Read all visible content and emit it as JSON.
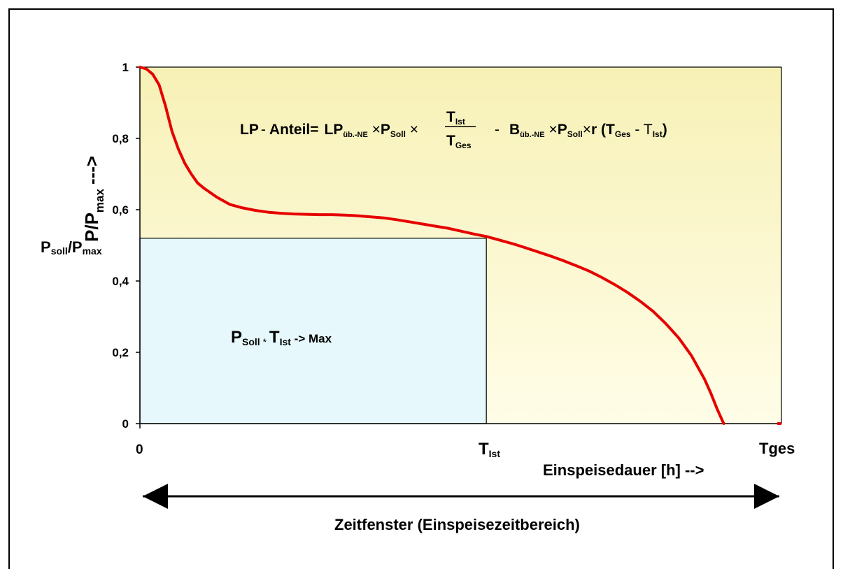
{
  "chart_data": {
    "type": "line",
    "title": "",
    "xlabel": "Einspeisedauer [h] -->",
    "ylabel": {
      "base": "P/P",
      "sub": "max",
      "arrow": "--->"
    },
    "ylim": [
      0,
      1
    ],
    "yticks": [
      "0",
      "0,2",
      "0,4",
      "0,6",
      "0,8",
      "1"
    ],
    "ytick_values": [
      0,
      0.2,
      0.4,
      0.6,
      0.8,
      1
    ],
    "xlim": [
      0,
      1
    ],
    "x_markers": [
      {
        "value": 0,
        "label": "0",
        "sub": ""
      },
      {
        "value": 0.54,
        "label": "T",
        "sub": "Ist"
      },
      {
        "value": 1,
        "label": "Tges",
        "sub": ""
      }
    ],
    "series": [
      {
        "color": "#e60000",
        "x": [
          0,
          0.01,
          0.02,
          0.03,
          0.04,
          0.05,
          0.06,
          0.07,
          0.08,
          0.09,
          0.1,
          0.12,
          0.14,
          0.16,
          0.18,
          0.2,
          0.22,
          0.24,
          0.26,
          0.28,
          0.3,
          0.32,
          0.34,
          0.36,
          0.38,
          0.4,
          0.42,
          0.44,
          0.46,
          0.48,
          0.5,
          0.52,
          0.54,
          0.56,
          0.58,
          0.6,
          0.62,
          0.64,
          0.66,
          0.68,
          0.7,
          0.72,
          0.74,
          0.76,
          0.78,
          0.8,
          0.82,
          0.84,
          0.86,
          0.88,
          0.89,
          0.9,
          0.91
        ],
        "y": [
          1.0,
          0.995,
          0.98,
          0.95,
          0.89,
          0.82,
          0.77,
          0.73,
          0.7,
          0.675,
          0.66,
          0.635,
          0.615,
          0.605,
          0.598,
          0.593,
          0.59,
          0.588,
          0.587,
          0.586,
          0.586,
          0.585,
          0.583,
          0.58,
          0.577,
          0.572,
          0.566,
          0.56,
          0.554,
          0.548,
          0.54,
          0.532,
          0.525,
          0.515,
          0.505,
          0.494,
          0.482,
          0.47,
          0.457,
          0.443,
          0.428,
          0.41,
          0.39,
          0.368,
          0.343,
          0.315,
          0.28,
          0.24,
          0.19,
          0.125,
          0.085,
          0.04,
          0.0
        ]
      }
    ],
    "rect": {
      "x0": 0,
      "x1": 0.54,
      "y0": 0,
      "y1": 0.52
    },
    "psoll_label": {
      "base": "P",
      "sub1": "soll",
      "mid": "/P",
      "sub2": "max"
    },
    "rect_label": {
      "p": "P",
      "p_sub": "Soll",
      "star": " * ",
      "t": "T",
      "t_sub": "Ist",
      "tail": " -> Max"
    },
    "formula": {
      "lp": "LP",
      "minus1": "-",
      "anteil": " Anteil=",
      "lp2": "LP",
      "lp2_sub": "üb.-NE",
      "times1": " ×",
      "p1": "P",
      "p1_sub": "Soll",
      "times2": " ×",
      "frac_num": "T",
      "frac_num_sub": "Ist",
      "frac_den": "T",
      "frac_den_sub": "Ges",
      "minus2": "-",
      "b": "B",
      "b_sub": "üb.-NE",
      "times3": " ×",
      "p2": "P",
      "p2_sub": "Soll",
      "times4": "×",
      "r": "r",
      "open": " (T",
      "tges_sub": "Ges",
      "minus3": " - T",
      "tist_sub": "Ist",
      "close": ")"
    },
    "time_window": "Zeitfenster (Einspeisezeitbereich)",
    "colors": {
      "plot_top": "#f7f1b6",
      "plot_bottom": "#fffde8",
      "rect_fill": "#e6f8fb",
      "curve": "#e60000"
    },
    "grid": false,
    "legend": "none"
  }
}
